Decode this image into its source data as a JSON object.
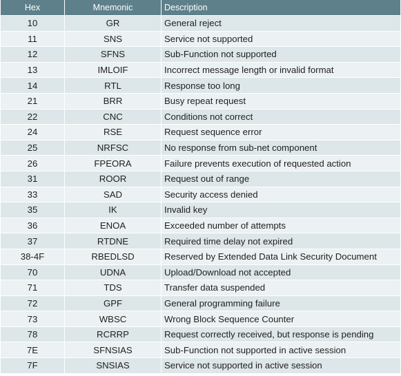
{
  "table": {
    "headers": {
      "hex": "Hex",
      "mnemonic": "Mnemonic",
      "description": "Description"
    },
    "rows": [
      {
        "hex": "10",
        "mnemonic": "GR",
        "description": "General reject"
      },
      {
        "hex": "11",
        "mnemonic": "SNS",
        "description": "Service not supported"
      },
      {
        "hex": "12",
        "mnemonic": "SFNS",
        "description": "Sub-Function not supported"
      },
      {
        "hex": "13",
        "mnemonic": "IMLOIF",
        "description": "Incorrect message length or invalid format"
      },
      {
        "hex": "14",
        "mnemonic": "RTL",
        "description": "Response too long"
      },
      {
        "hex": "21",
        "mnemonic": "BRR",
        "description": "Busy repeat request"
      },
      {
        "hex": "22",
        "mnemonic": "CNC",
        "description": "Conditions not correct"
      },
      {
        "hex": "24",
        "mnemonic": "RSE",
        "description": "Request sequence error"
      },
      {
        "hex": "25",
        "mnemonic": "NRFSC",
        "description": "No response from sub-net component"
      },
      {
        "hex": "26",
        "mnemonic": "FPEORA",
        "description": "Failure prevents execution of requested action"
      },
      {
        "hex": "31",
        "mnemonic": "ROOR",
        "description": "Request out of range"
      },
      {
        "hex": "33",
        "mnemonic": "SAD",
        "description": "Security access denied"
      },
      {
        "hex": "35",
        "mnemonic": "IK",
        "description": "Invalid key"
      },
      {
        "hex": "36",
        "mnemonic": "ENOA",
        "description": "Exceeded number of attempts"
      },
      {
        "hex": "37",
        "mnemonic": "RTDNE",
        "description": "Required time delay not expired"
      },
      {
        "hex": "38-4F",
        "mnemonic": "RBEDLSD",
        "description": "Reserved by Extended Data Link Security Document"
      },
      {
        "hex": "70",
        "mnemonic": "UDNA",
        "description": "Upload/Download not accepted"
      },
      {
        "hex": "71",
        "mnemonic": "TDS",
        "description": "Transfer data suspended"
      },
      {
        "hex": "72",
        "mnemonic": "GPF",
        "description": "General programming failure"
      },
      {
        "hex": "73",
        "mnemonic": "WBSC",
        "description": "Wrong Block Sequence Counter"
      },
      {
        "hex": "78",
        "mnemonic": "RCRRP",
        "description": "Request correctly received, but response is pending"
      },
      {
        "hex": "7E",
        "mnemonic": "SFNSIAS",
        "description": "Sub-Function not supported in active session"
      },
      {
        "hex": "7F",
        "mnemonic": "SNSIAS",
        "description": "Service not supported in active session"
      }
    ]
  },
  "colors": {
    "header_background": "#5e808a",
    "header_text": "#ffffff",
    "row_odd": "#dde6e9",
    "row_even": "#ecf1f3",
    "cell_text": "#1f1f1f"
  }
}
